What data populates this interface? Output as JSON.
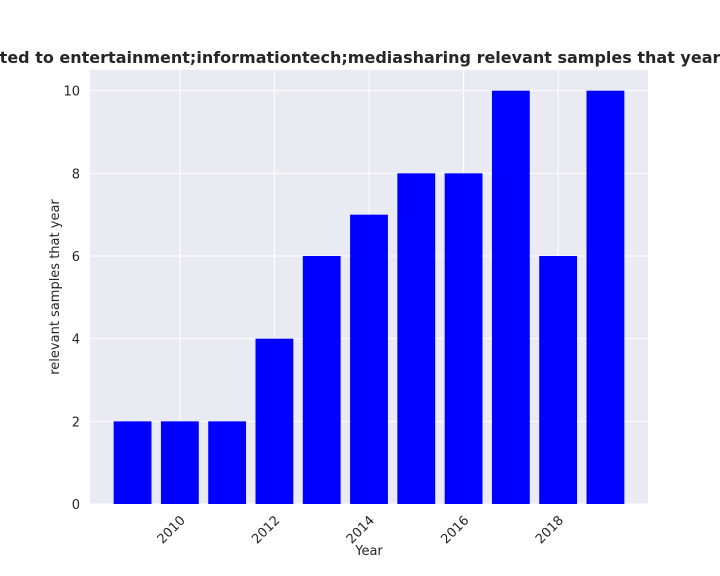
{
  "chart_data": {
    "type": "bar",
    "title": "are related to entertainment;informationtech;mediasharing relevant samples that year in priva",
    "xlabel": "Year",
    "ylabel": "relevant samples that year",
    "x": [
      2009,
      2010,
      2011,
      2012,
      2013,
      2014,
      2015,
      2016,
      2017,
      2018,
      2019
    ],
    "values": [
      2,
      2,
      2,
      4,
      6,
      7,
      8,
      8,
      10,
      6,
      10
    ],
    "xticks": [
      2010,
      2012,
      2014,
      2016,
      2018
    ],
    "yticks": [
      0,
      2,
      4,
      6,
      8,
      10
    ],
    "xlim": [
      2008.1,
      2019.9
    ],
    "ylim": [
      0,
      10.5
    ],
    "bar_color": "#0000ff",
    "plot_background": "#eaeaf2",
    "grid_color": "#ffffff",
    "grid": true
  }
}
